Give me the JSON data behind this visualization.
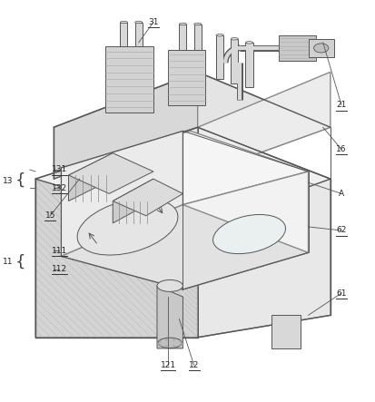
{
  "background_color": "#ffffff",
  "line_color": "#888888",
  "dark_line_color": "#555555",
  "figsize": [
    4.14,
    4.43
  ],
  "dpi": 100
}
